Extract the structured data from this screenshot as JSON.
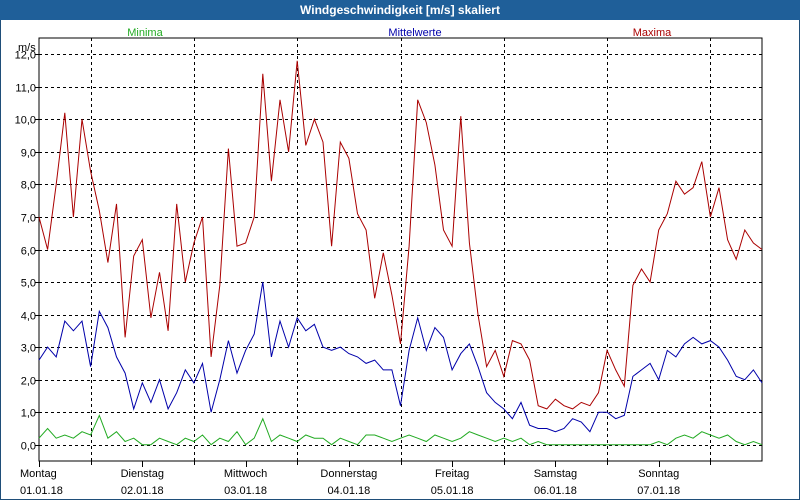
{
  "window": {
    "title": "Windgeschwindigkeit [m/s] skaliert"
  },
  "colors": {
    "minima": "#22aa22",
    "mittel": "#0000aa",
    "maxima": "#aa0000",
    "grid": "#000000",
    "axis": "#000000"
  },
  "chart_data": {
    "type": "line",
    "title": "Windgeschwindigkeit [m/s] skaliert",
    "ylabel": "m/s",
    "xlabel": "",
    "ylim": [
      -0.5,
      12.5
    ],
    "yticks": [
      "0,0",
      "1,0",
      "2,0",
      "3,0",
      "4,0",
      "5,0",
      "6,0",
      "7,0",
      "8,0",
      "9,0",
      "10,0",
      "11,0",
      "12,0"
    ],
    "ytick_values": [
      0,
      1,
      2,
      3,
      4,
      5,
      6,
      7,
      8,
      9,
      10,
      11,
      12
    ],
    "days": [
      {
        "name": "Montag",
        "date": "01.01.18"
      },
      {
        "name": "Dienstag",
        "date": "02.01.18"
      },
      {
        "name": "Mittwoch",
        "date": "03.01.18"
      },
      {
        "name": "Donnerstag",
        "date": "04.01.18"
      },
      {
        "name": "Freitag",
        "date": "05.01.18"
      },
      {
        "name": "Samstag",
        "date": "06.01.18"
      },
      {
        "name": "Sonntag",
        "date": "07.01.18"
      }
    ],
    "legend": [
      "Minima",
      "Mittelwerte",
      "Maxima"
    ],
    "x_unit": "hours since 01.01.18 00:00",
    "xlim": [
      0,
      168
    ],
    "series": [
      {
        "name": "Minima",
        "x": [
          0,
          2,
          4,
          6,
          8,
          10,
          12,
          14,
          16,
          18,
          20,
          22,
          24,
          26,
          28,
          30,
          32,
          34,
          36,
          38,
          40,
          42,
          44,
          46,
          48,
          50,
          52,
          54,
          56,
          58,
          60,
          62,
          64,
          66,
          68,
          70,
          72,
          74,
          76,
          78,
          80,
          82,
          84,
          86,
          88,
          90,
          92,
          94,
          96,
          98,
          100,
          102,
          104,
          106,
          108,
          110,
          112,
          114,
          116,
          118,
          120,
          122,
          124,
          126,
          128,
          130,
          132,
          134,
          136,
          138,
          140,
          142,
          144,
          146,
          148,
          150,
          152,
          154,
          156,
          158,
          160,
          162,
          164,
          166,
          168
        ],
        "values": [
          0.2,
          0.5,
          0.2,
          0.3,
          0.2,
          0.4,
          0.3,
          0.9,
          0.2,
          0.4,
          0.1,
          0.2,
          0.0,
          0.0,
          0.2,
          0.1,
          0.0,
          0.2,
          0.1,
          0.3,
          0.0,
          0.2,
          0.1,
          0.4,
          0.0,
          0.2,
          0.8,
          0.1,
          0.3,
          0.2,
          0.1,
          0.3,
          0.2,
          0.2,
          0.0,
          0.2,
          0.1,
          0.0,
          0.3,
          0.3,
          0.2,
          0.1,
          0.2,
          0.3,
          0.2,
          0.1,
          0.3,
          0.2,
          0.1,
          0.2,
          0.4,
          0.3,
          0.2,
          0.1,
          0.2,
          0.1,
          0.2,
          0.0,
          0.1,
          0.0,
          0.0,
          0.0,
          0.0,
          0.0,
          0.0,
          0.0,
          0.0,
          0.0,
          0.0,
          0.0,
          0.0,
          0.0,
          0.1,
          0.0,
          0.2,
          0.3,
          0.2,
          0.4,
          0.3,
          0.2,
          0.3,
          0.1,
          0.0,
          0.1,
          0.0
        ]
      },
      {
        "name": "Mittelwerte",
        "x": [
          0,
          2,
          4,
          6,
          8,
          10,
          12,
          14,
          16,
          18,
          20,
          22,
          24,
          26,
          28,
          30,
          32,
          34,
          36,
          38,
          40,
          42,
          44,
          46,
          48,
          50,
          52,
          54,
          56,
          58,
          60,
          62,
          64,
          66,
          68,
          70,
          72,
          74,
          76,
          78,
          80,
          82,
          84,
          86,
          88,
          90,
          92,
          94,
          96,
          98,
          100,
          102,
          104,
          106,
          108,
          110,
          112,
          114,
          116,
          118,
          120,
          122,
          124,
          126,
          128,
          130,
          132,
          134,
          136,
          138,
          140,
          142,
          144,
          146,
          148,
          150,
          152,
          154,
          156,
          158,
          160,
          162,
          164,
          166,
          168
        ],
        "values": [
          2.6,
          3.0,
          2.7,
          3.8,
          3.5,
          3.8,
          2.4,
          4.1,
          3.6,
          2.7,
          2.2,
          1.1,
          1.9,
          1.3,
          2.0,
          1.1,
          1.6,
          2.3,
          1.9,
          2.5,
          1.0,
          2.0,
          3.2,
          2.2,
          2.9,
          3.4,
          5.0,
          2.7,
          3.8,
          3.0,
          3.9,
          3.5,
          3.7,
          3.0,
          2.9,
          3.0,
          2.8,
          2.7,
          2.5,
          2.6,
          2.3,
          2.3,
          1.2,
          2.9,
          3.9,
          2.9,
          3.6,
          3.3,
          2.3,
          2.8,
          3.1,
          2.4,
          1.6,
          1.3,
          1.1,
          0.8,
          1.3,
          0.6,
          0.5,
          0.5,
          0.4,
          0.5,
          0.8,
          0.7,
          0.4,
          1.0,
          1.0,
          0.8,
          0.9,
          2.1,
          2.3,
          2.5,
          2.0,
          2.9,
          2.7,
          3.1,
          3.3,
          3.1,
          3.2,
          3.0,
          2.6,
          2.1,
          2.0,
          2.3,
          1.9
        ]
      },
      {
        "name": "Maxima",
        "x": [
          0,
          2,
          4,
          6,
          8,
          10,
          12,
          14,
          16,
          18,
          20,
          22,
          24,
          26,
          28,
          30,
          32,
          34,
          36,
          38,
          40,
          42,
          44,
          46,
          48,
          50,
          52,
          54,
          56,
          58,
          60,
          62,
          64,
          66,
          68,
          70,
          72,
          74,
          76,
          78,
          80,
          82,
          84,
          86,
          88,
          90,
          92,
          94,
          96,
          98,
          100,
          102,
          104,
          106,
          108,
          110,
          112,
          114,
          116,
          118,
          120,
          122,
          124,
          126,
          128,
          130,
          132,
          134,
          136,
          138,
          140,
          142,
          144,
          146,
          148,
          150,
          152,
          154,
          156,
          158,
          160,
          162,
          164,
          166,
          168
        ],
        "values": [
          7.0,
          6.0,
          8.0,
          10.2,
          7.0,
          10.0,
          8.4,
          7.2,
          5.6,
          7.4,
          3.3,
          5.8,
          6.3,
          3.9,
          5.3,
          3.5,
          7.4,
          5.0,
          6.2,
          7.0,
          2.7,
          4.9,
          9.1,
          6.1,
          6.2,
          7.0,
          11.4,
          8.1,
          10.6,
          9.0,
          11.8,
          9.2,
          10.0,
          9.3,
          6.1,
          9.3,
          8.8,
          7.1,
          6.6,
          4.5,
          5.9,
          4.6,
          3.1,
          6.1,
          10.6,
          9.9,
          8.6,
          6.6,
          6.1,
          10.1,
          6.2,
          4.0,
          2.4,
          2.9,
          2.1,
          3.2,
          3.1,
          2.6,
          1.2,
          1.1,
          1.4,
          1.2,
          1.1,
          1.3,
          1.2,
          1.6,
          2.9,
          2.3,
          1.8,
          4.9,
          5.4,
          5.0,
          6.6,
          7.1,
          8.1,
          7.7,
          7.9,
          8.7,
          7.0,
          7.9,
          6.3,
          5.7,
          6.6,
          6.2,
          6.0
        ]
      }
    ]
  }
}
